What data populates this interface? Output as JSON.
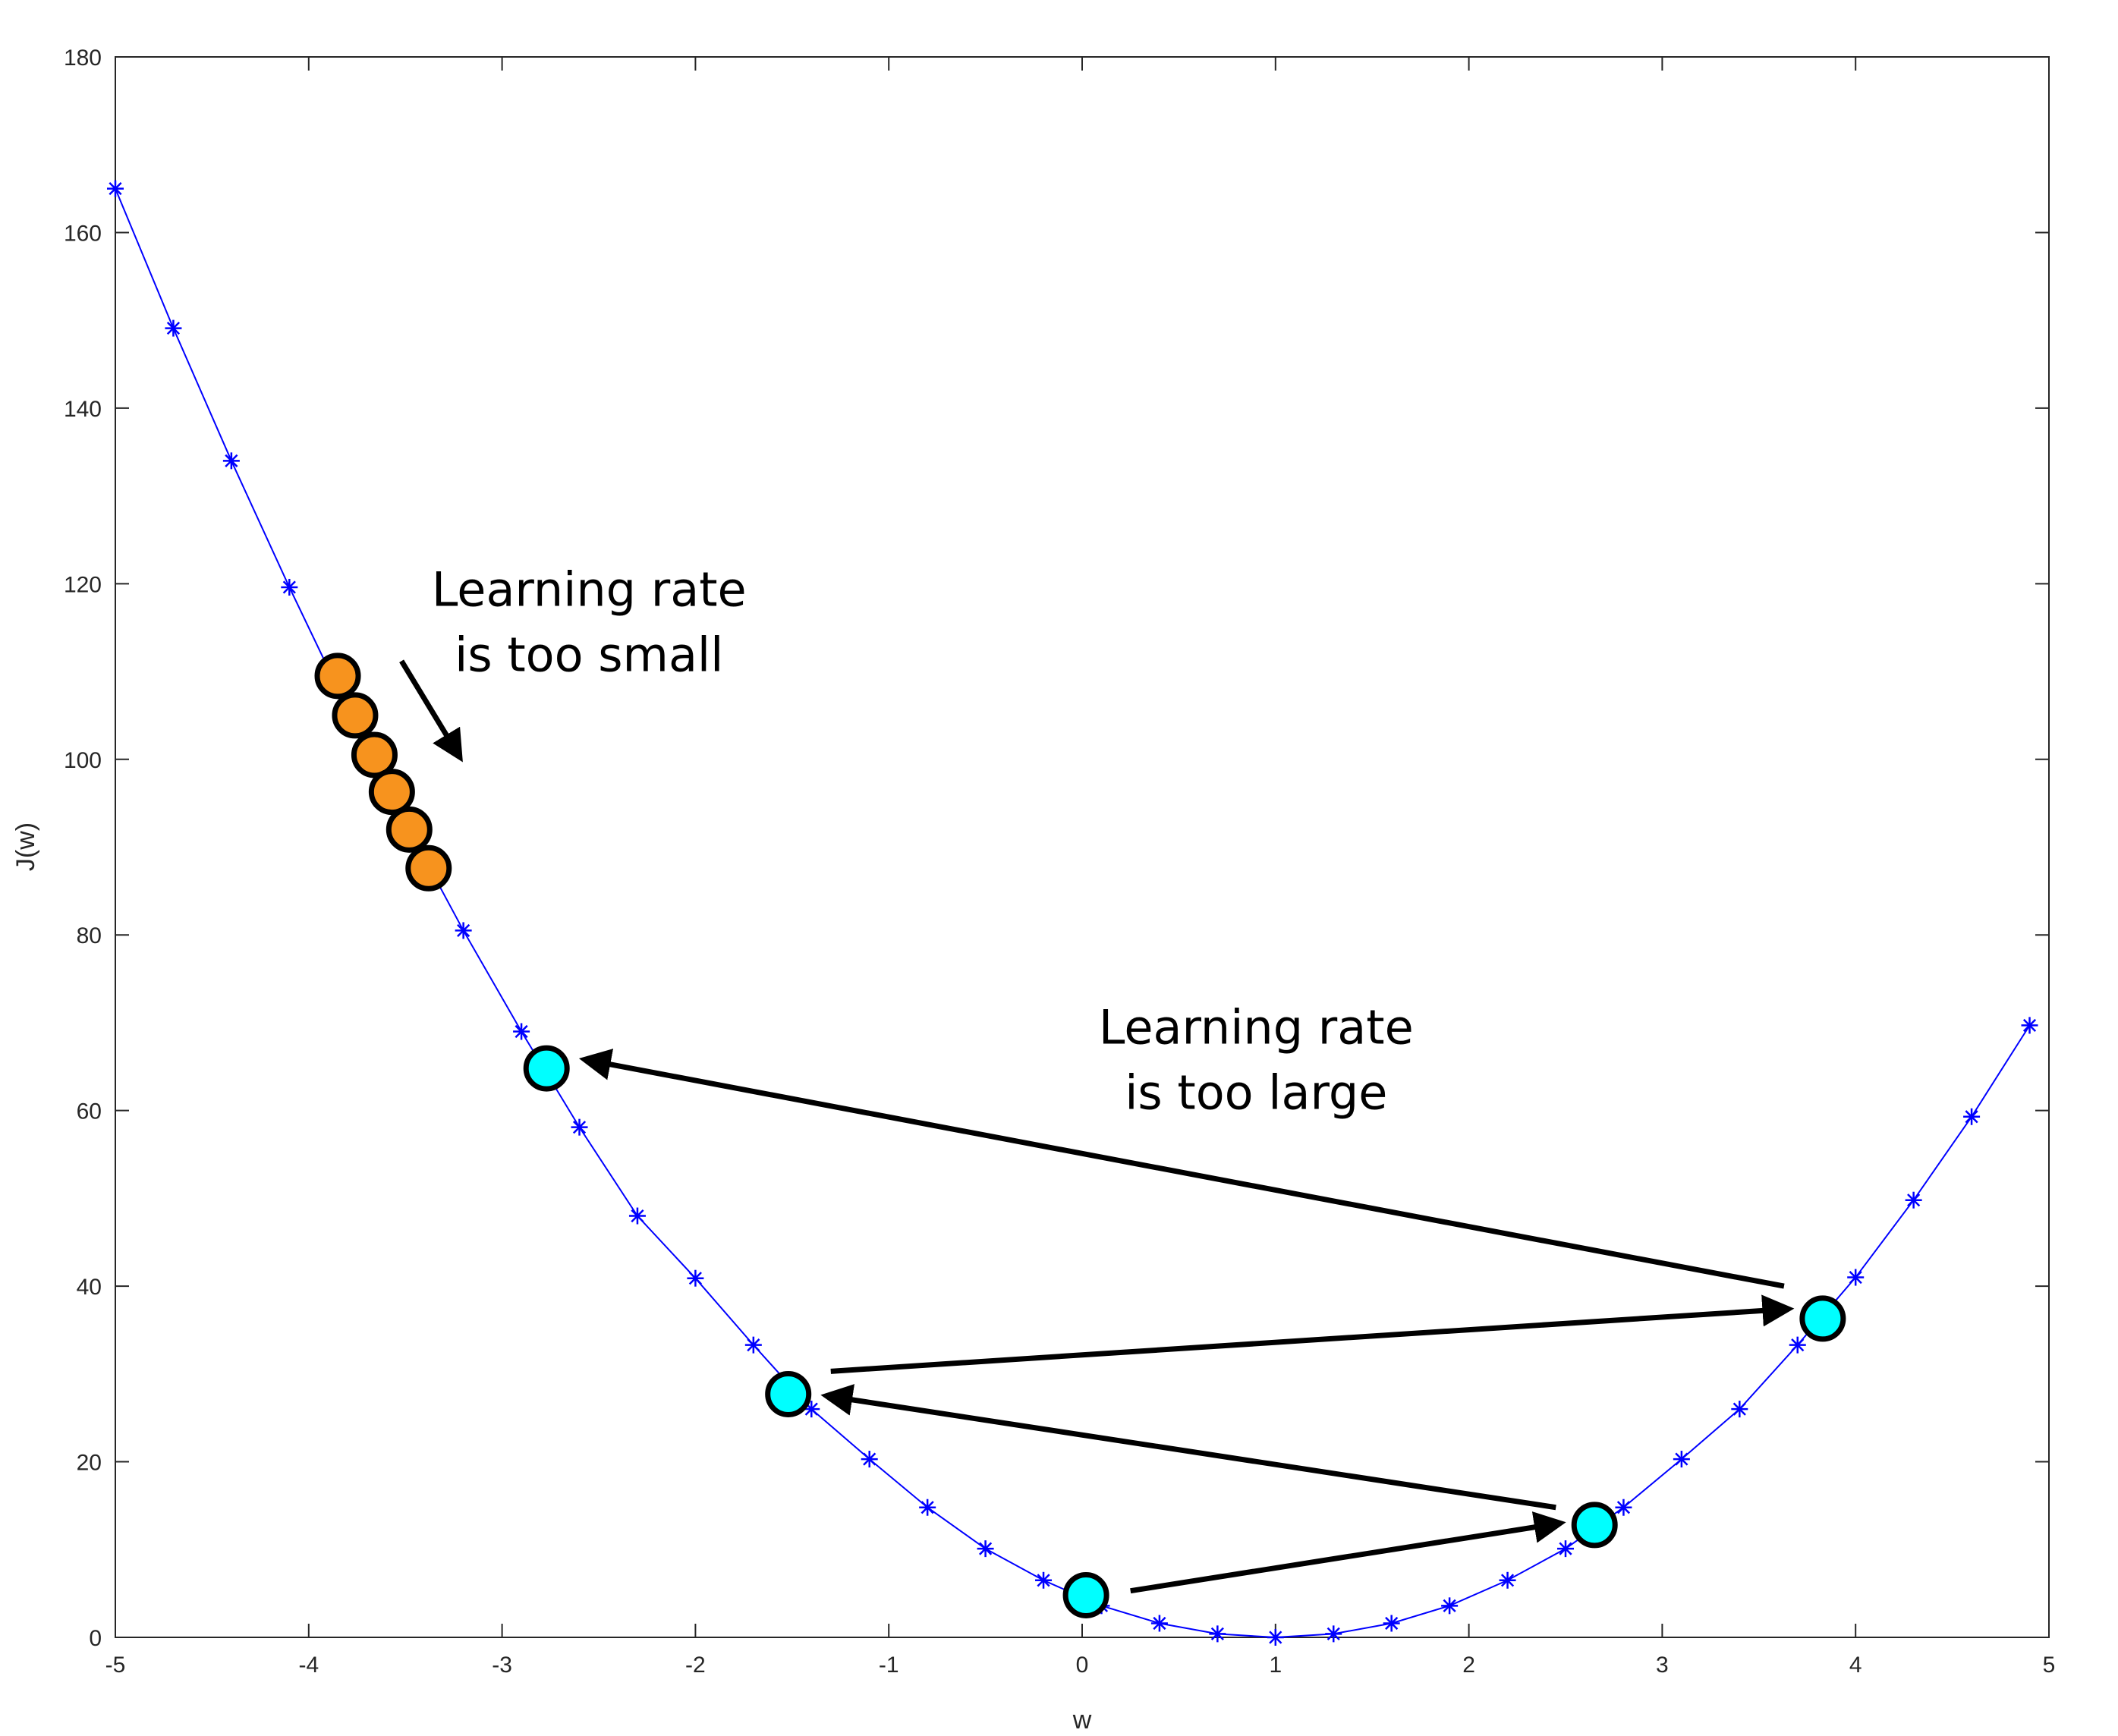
{
  "chart_data": {
    "type": "line",
    "title": "",
    "xlabel": "w",
    "ylabel": "J(w)",
    "xlim": [
      -5,
      5
    ],
    "ylim": [
      0,
      180
    ],
    "xticks": [
      -5,
      -4,
      -3,
      -2,
      -1,
      0,
      1,
      2,
      3,
      4,
      5
    ],
    "yticks": [
      0,
      20,
      40,
      60,
      80,
      100,
      120,
      140,
      160,
      180
    ],
    "grid": false,
    "colors": {
      "curve": "#0000ff",
      "small_step": "#f7931e",
      "large_step": "#00ffff",
      "arrow": "#000000"
    },
    "series": [
      {
        "marker": "asterisk",
        "x": [
          -5,
          -4.7,
          -4.4,
          -4.1,
          -3.8,
          -3.5,
          -3.2,
          -2.9,
          -2.6,
          -2.3,
          -2.0,
          -1.7,
          -1.4,
          -1.1,
          -0.8,
          -0.5,
          -0.2,
          0.1,
          0.4,
          0.7,
          1.0,
          1.3,
          1.6,
          1.9,
          2.2,
          2.5,
          2.8,
          3.1,
          3.4,
          3.7,
          4.0,
          4.3,
          4.6,
          4.9
        ],
        "y": [
          165,
          149.1,
          134.0,
          119.6,
          105.8,
          92.8,
          80.5,
          69.0,
          58.1,
          48.0,
          40.9,
          33.3,
          26.0,
          20.3,
          14.8,
          10.1,
          6.5,
          3.6,
          1.6,
          0.4,
          0,
          0.4,
          1.6,
          3.6,
          6.5,
          10.1,
          14.8,
          20.3,
          26.0,
          33.3,
          41.0,
          49.8,
          59.3,
          69.7
        ]
      }
    ],
    "small_steps": [
      {
        "x": -3.85,
        "y": 109.5
      },
      {
        "x": -3.76,
        "y": 105.0
      },
      {
        "x": -3.66,
        "y": 100.5
      },
      {
        "x": -3.57,
        "y": 96.3
      },
      {
        "x": -3.48,
        "y": 92.0
      },
      {
        "x": -3.38,
        "y": 87.6
      }
    ],
    "large_steps": [
      {
        "x": 0.02,
        "y": 4.8
      },
      {
        "x": 2.65,
        "y": 12.8
      },
      {
        "x": -1.52,
        "y": 27.7
      },
      {
        "x": 3.83,
        "y": 36.3
      },
      {
        "x": -2.77,
        "y": 64.8
      }
    ],
    "arrows": [
      {
        "from": [
          0.25,
          5.3
        ],
        "to": [
          2.47,
          13.0
        ]
      },
      {
        "from": [
          2.45,
          14.8
        ],
        "to": [
          -1.32,
          27.5
        ]
      },
      {
        "from": [
          -1.3,
          30.3
        ],
        "to": [
          3.65,
          37.4
        ]
      },
      {
        "from": [
          3.63,
          40.0
        ],
        "to": [
          -2.57,
          65.8
        ]
      },
      {
        "from": [
          -3.52,
          111.2
        ],
        "to": [
          -3.22,
          100.3
        ]
      }
    ],
    "annotations": [
      {
        "lines": [
          "Learning rate",
          "is too small"
        ],
        "x": -2.55,
        "y": 117.5
      },
      {
        "lines": [
          "Learning rate",
          "is too large"
        ],
        "x": 0.9,
        "y": 67.6
      }
    ]
  }
}
